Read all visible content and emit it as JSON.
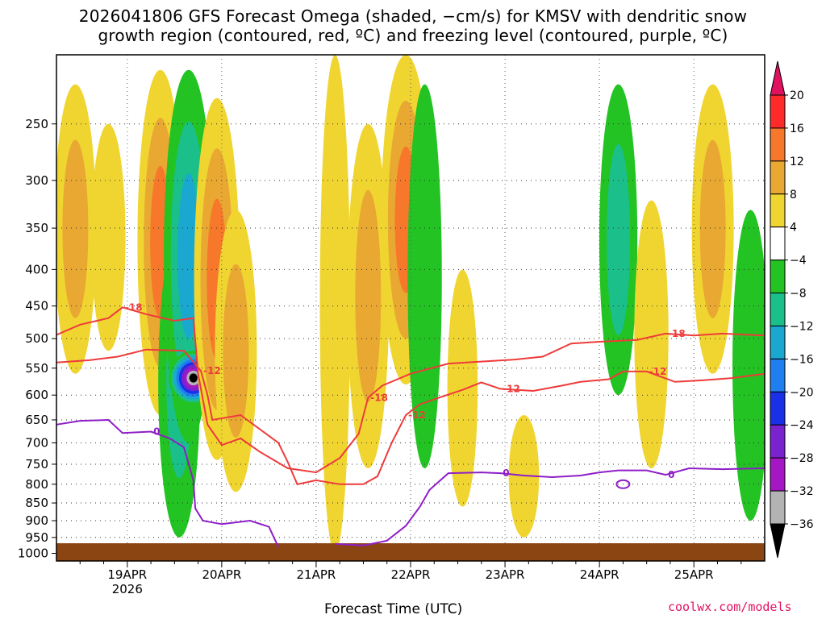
{
  "title_line1": "2026041806 GFS Forecast Omega (shaded, −cm/s) for KMSV with dendritic snow",
  "title_line2": "growth region (contoured, red, ºC) and freezing level (contoured, purple, ºC)",
  "credit": "coolwx.com/models",
  "chart_data": {
    "type": "heatmap",
    "title": "2026041806 GFS Forecast Omega (shaded, −cm/s) for KMSV with dendritic snow growth region (contoured, red, ºC) and freezing level (contoured, purple, ºC)",
    "xlabel": "Forecast Time (UTC)",
    "ylabel": "",
    "x_ticks": [
      "19APR",
      "20APR",
      "21APR",
      "22APR",
      "23APR",
      "24APR",
      "25APR"
    ],
    "x_sublabel": "2026",
    "x_range_days": [
      18.25,
      25.75
    ],
    "y_ticks": [
      250,
      300,
      350,
      400,
      450,
      500,
      550,
      600,
      650,
      700,
      750,
      800,
      850,
      900,
      950,
      1000
    ],
    "y_range_hPa": [
      200,
      1025
    ],
    "colorbar": {
      "labels": [
        "20",
        "16",
        "12",
        "8",
        "4",
        "−4",
        "−8",
        "−12",
        "−16",
        "−20",
        "−24",
        "−28",
        "−32",
        "−36"
      ],
      "colors": [
        "#e0115f",
        "#ff2a2a",
        "#f7782a",
        "#e8a832",
        "#f0d531",
        "#ffffff",
        "#22c322",
        "#1bbf8a",
        "#1aa8d1",
        "#1f7ff0",
        "#1a30e6",
        "#7b22d0",
        "#a516c4",
        "#b3b3b3",
        "#000000"
      ]
    },
    "contours": {
      "dendritic_red": [
        {
          "label": "-18",
          "points": [
            [
              18.25,
              494
            ],
            [
              18.5,
              478
            ],
            [
              18.8,
              468
            ],
            [
              18.95,
              452
            ],
            [
              19.2,
              462
            ],
            [
              19.5,
              472
            ],
            [
              19.7,
              468
            ],
            [
              19.75,
              560
            ],
            [
              19.85,
              660
            ],
            [
              20.0,
              705
            ],
            [
              20.2,
              690
            ],
            [
              20.4,
              720
            ],
            [
              20.7,
              760
            ],
            [
              21.0,
              770
            ],
            [
              21.25,
              735
            ],
            [
              21.45,
              680
            ],
            [
              21.55,
              605
            ],
            [
              21.7,
              582
            ],
            [
              22.0,
              560
            ],
            [
              22.4,
              542
            ],
            [
              22.8,
              538
            ],
            [
              23.1,
              535
            ],
            [
              23.4,
              530
            ],
            [
              23.7,
              508
            ],
            [
              24.0,
              505
            ],
            [
              24.4,
              502
            ],
            [
              24.7,
              492
            ],
            [
              25.0,
              495
            ],
            [
              25.3,
              492
            ],
            [
              25.75,
              495
            ]
          ]
        },
        {
          "label": "-12",
          "points": [
            [
              18.25,
              540
            ],
            [
              18.6,
              536
            ],
            [
              18.9,
              530
            ],
            [
              19.2,
              518
            ],
            [
              19.6,
              520
            ],
            [
              19.78,
              555
            ],
            [
              19.85,
              600
            ],
            [
              19.9,
              650
            ],
            [
              20.2,
              640
            ],
            [
              20.6,
              700
            ],
            [
              20.7,
              745
            ],
            [
              20.8,
              800
            ],
            [
              21.0,
              790
            ],
            [
              21.25,
              800
            ],
            [
              21.5,
              800
            ],
            [
              21.65,
              780
            ],
            [
              21.8,
              700
            ],
            [
              21.95,
              640
            ],
            [
              22.1,
              618
            ],
            [
              22.3,
              605
            ],
            [
              22.55,
              590
            ],
            [
              22.75,
              576
            ],
            [
              22.95,
              588
            ],
            [
              23.3,
              592
            ],
            [
              23.6,
              582
            ],
            [
              23.8,
              575
            ],
            [
              24.1,
              570
            ],
            [
              24.25,
              556
            ],
            [
              24.5,
              556
            ],
            [
              24.8,
              575
            ],
            [
              25.1,
              572
            ],
            [
              25.4,
              568
            ],
            [
              25.75,
              560
            ]
          ]
        }
      ],
      "freezing_purple": [
        {
          "label": "0",
          "points": [
            [
              18.25,
              660
            ],
            [
              18.5,
              652
            ],
            [
              18.8,
              650
            ],
            [
              18.95,
              678
            ],
            [
              19.25,
              675
            ],
            [
              19.45,
              690
            ],
            [
              19.6,
              710
            ],
            [
              19.7,
              790
            ],
            [
              19.72,
              865
            ],
            [
              19.8,
              900
            ],
            [
              20.0,
              910
            ],
            [
              20.3,
              900
            ],
            [
              20.5,
              918
            ],
            [
              20.6,
              980
            ]
          ]
        },
        {
          "label": "0",
          "points": [
            [
              21.2,
              970
            ],
            [
              21.5,
              975
            ],
            [
              21.75,
              960
            ],
            [
              21.95,
              915
            ],
            [
              22.1,
              860
            ],
            [
              22.2,
              815
            ],
            [
              22.4,
              772
            ],
            [
              22.75,
              770
            ],
            [
              22.95,
              772
            ],
            [
              23.2,
              778
            ],
            [
              23.5,
              782
            ],
            [
              23.8,
              778
            ],
            [
              24.0,
              770
            ],
            [
              24.2,
              765
            ],
            [
              24.5,
              765
            ],
            [
              24.7,
              776
            ],
            [
              24.95,
              760
            ],
            [
              25.3,
              762
            ],
            [
              25.75,
              760
            ]
          ]
        }
      ]
    },
    "shading_bands": [
      {
        "x_center": 18.45,
        "p_top": 220,
        "p_bot": 560,
        "omega": 10
      },
      {
        "x_center": 18.8,
        "p_top": 250,
        "p_bot": 520,
        "omega": 6
      },
      {
        "x_center": 19.35,
        "p_top": 210,
        "p_bot": 640,
        "omega": 12
      },
      {
        "x_center": 19.55,
        "p_top": 350,
        "p_bot": 950,
        "omega": -10
      },
      {
        "x_center": 19.65,
        "p_top": 210,
        "p_bot": 700,
        "omega": -14
      },
      {
        "x_center": 19.7,
        "p_top": 520,
        "p_bot": 620,
        "omega": -36
      },
      {
        "x_center": 19.95,
        "p_top": 230,
        "p_bot": 740,
        "omega": 12
      },
      {
        "x_center": 20.15,
        "p_top": 330,
        "p_bot": 820,
        "omega": 10
      },
      {
        "x_center": 21.2,
        "p_top": 200,
        "p_bot": 1000,
        "omega": 4
      },
      {
        "x_center": 21.55,
        "p_top": 250,
        "p_bot": 760,
        "omega": 10
      },
      {
        "x_center": 21.95,
        "p_top": 200,
        "p_bot": 580,
        "omega": 14
      },
      {
        "x_center": 22.15,
        "p_top": 220,
        "p_bot": 760,
        "omega": -6
      },
      {
        "x_center": 22.55,
        "p_top": 400,
        "p_bot": 860,
        "omega": 4
      },
      {
        "x_center": 23.2,
        "p_top": 640,
        "p_bot": 950,
        "omega": 4
      },
      {
        "x_center": 24.2,
        "p_top": 220,
        "p_bot": 600,
        "omega": -8
      },
      {
        "x_center": 24.55,
        "p_top": 320,
        "p_bot": 760,
        "omega": 6
      },
      {
        "x_center": 25.2,
        "p_top": 220,
        "p_bot": 560,
        "omega": 10
      },
      {
        "x_center": 25.6,
        "p_top": 330,
        "p_bot": 900,
        "omega": -7
      }
    ]
  }
}
